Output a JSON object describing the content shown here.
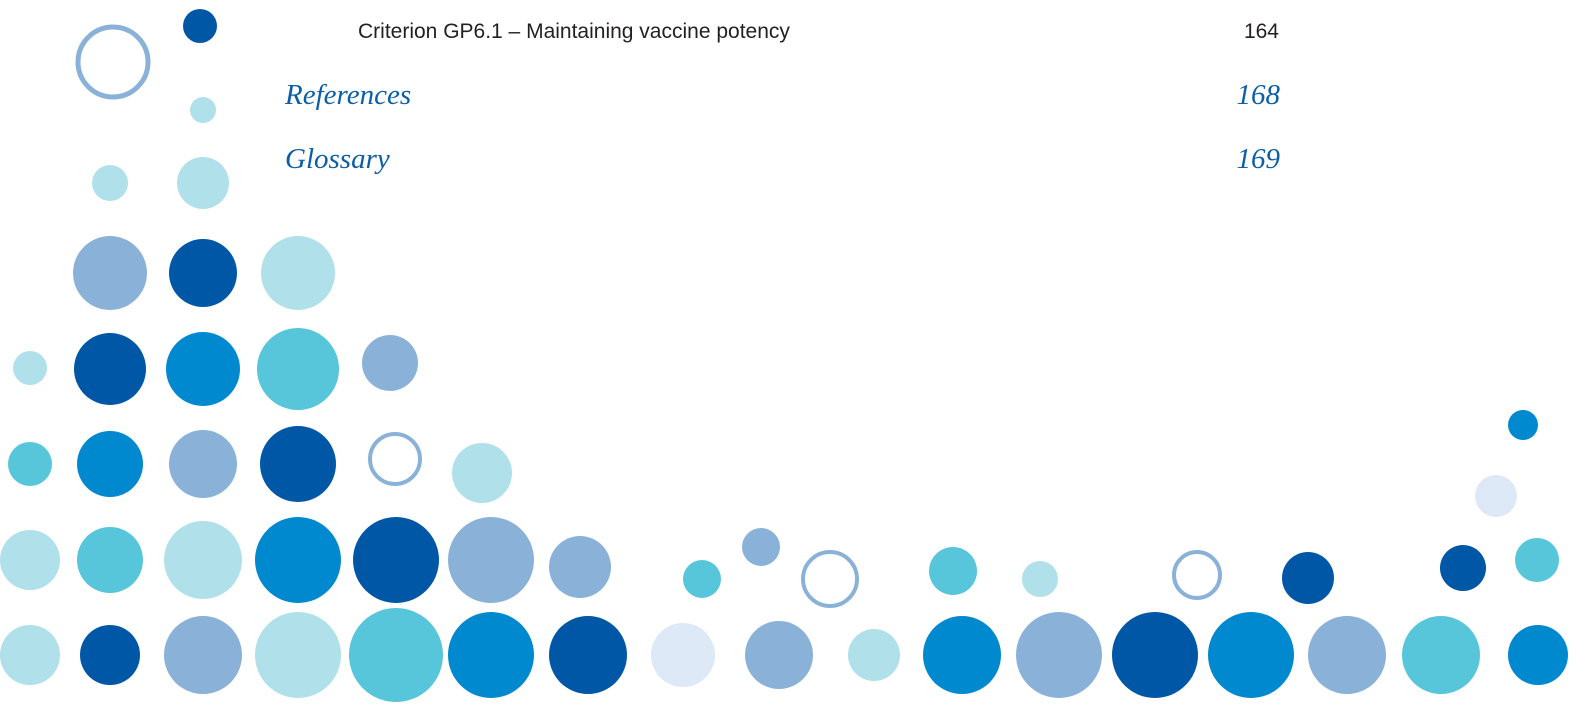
{
  "toc": {
    "entries": [
      {
        "title": "Criterion GP6.1 – Maintaining vaccine potency",
        "page": "164"
      },
      {
        "title": "References",
        "page": "168"
      },
      {
        "title": "Glossary",
        "page": "169"
      }
    ]
  }
}
